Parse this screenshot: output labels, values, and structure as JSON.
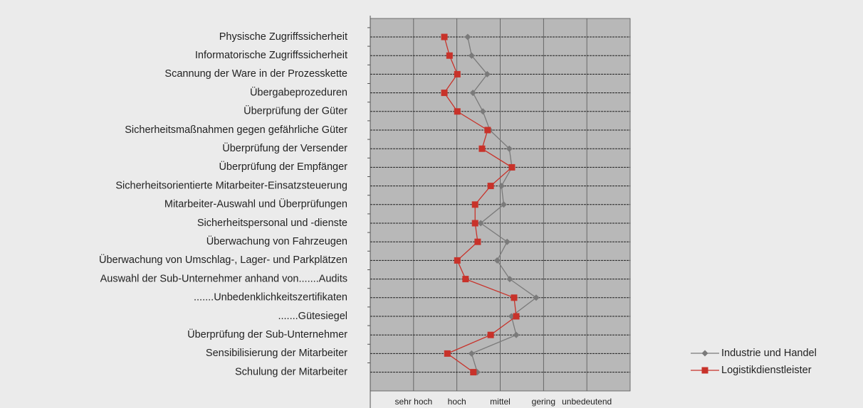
{
  "chart_data": {
    "type": "line",
    "orientation": "horizontal",
    "categories": [
      "Physische Zugriffssicherheit",
      "Informatorische Zugriffssicherheit",
      "Scannung der Ware in der Prozesskette",
      "Übergabeprozeduren",
      "Überprüfung der Güter",
      "Sicherheitsmaßnahmen gegen gefährliche Güter",
      "Überprüfung der Versender",
      "Überprüfung der Empfänger",
      "Sicherheitsorientierte Mitarbeiter-Einsatzsteuerung",
      "Mitarbeiter-Auswahl und Überprüfungen",
      "Sicherheitspersonal und -dienste",
      "Überwachung von Fahrzeugen",
      "Überwachung von Umschlag-, Lager- und Parkplätzen",
      "Auswahl der Sub-Unternehmer anhand von.......Audits",
      ".......Unbedenklichkeitszertifikaten",
      ".......Gütesiegel",
      "Überprüfung der Sub-Unternehmer",
      "Sensibilisierung der Mitarbeiter",
      "Schulung der Mitarbeiter"
    ],
    "series": [
      {
        "name": "Industrie und Handel",
        "color": "#7a7a7a",
        "marker": "diamond",
        "values": [
          2.25,
          2.34,
          2.7,
          2.37,
          2.6,
          2.76,
          3.21,
          3.27,
          3.03,
          3.08,
          2.55,
          3.16,
          2.93,
          3.22,
          3.83,
          3.26,
          3.37,
          2.34,
          2.47
        ]
      },
      {
        "name": "Logistikdienstleister",
        "color": "#c8322a",
        "marker": "square",
        "values": [
          1.71,
          1.83,
          2.01,
          1.71,
          2.01,
          2.71,
          2.58,
          3.27,
          2.78,
          2.42,
          2.42,
          2.48,
          2.01,
          2.2,
          3.32,
          3.37,
          2.78,
          1.78,
          2.38
        ]
      }
    ],
    "xlim": [
      0,
      6
    ],
    "xticks": [
      {
        "value": 1,
        "label": "sehr hoch"
      },
      {
        "value": 2,
        "label": "hoch"
      },
      {
        "value": 3,
        "label": "mittel"
      },
      {
        "value": 4,
        "label": "gering"
      },
      {
        "value": 5,
        "label": "unbedeutend"
      }
    ],
    "grid": true,
    "legend": "right"
  }
}
